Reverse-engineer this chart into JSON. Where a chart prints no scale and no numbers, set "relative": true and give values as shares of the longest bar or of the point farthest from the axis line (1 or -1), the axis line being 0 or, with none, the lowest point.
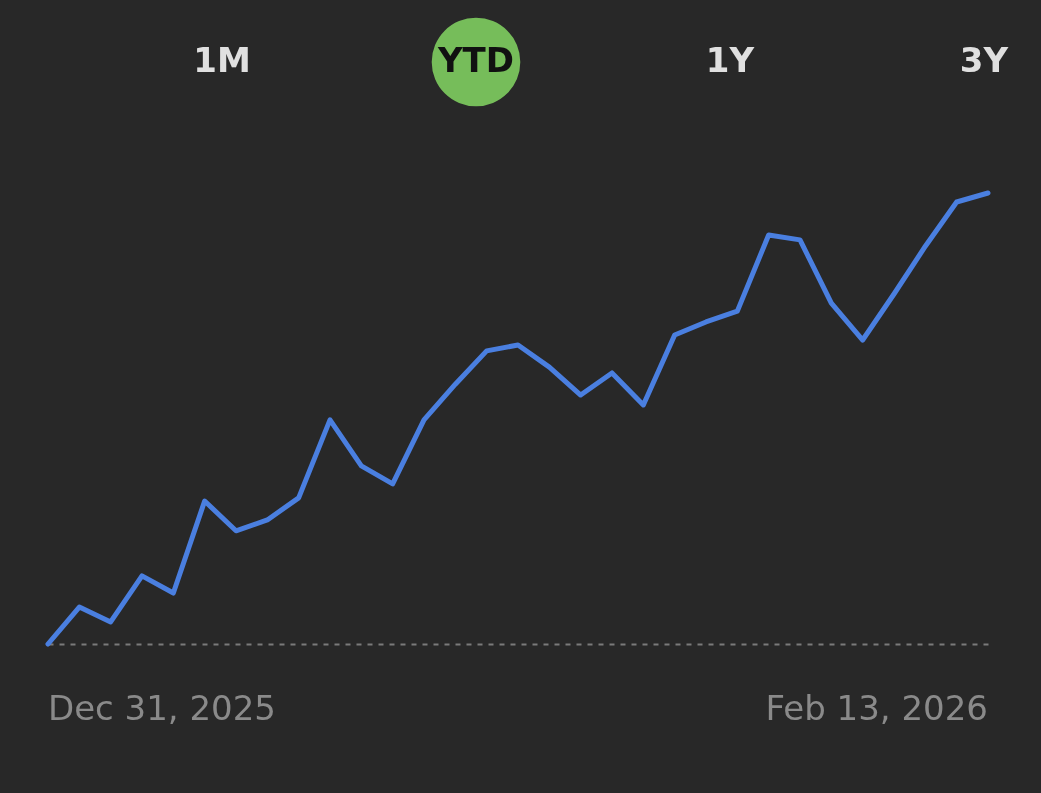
{
  "chart_data": {
    "type": "line",
    "relative": true,
    "categories": [
      null,
      null,
      null,
      null,
      null,
      null,
      null,
      null,
      null,
      null,
      null,
      null,
      null,
      null,
      null,
      null,
      null,
      null,
      null,
      null,
      null,
      null,
      null,
      null,
      null,
      null,
      null,
      null,
      null,
      null,
      null
    ],
    "series": [
      {
        "color": "#4a7fe0",
        "values": [
          0,
          0.082,
          0.049,
          0.151,
          0.113,
          0.317,
          0.251,
          0.275,
          0.324,
          0.497,
          0.395,
          0.355,
          0.497,
          0.576,
          0.65,
          0.663,
          0.614,
          0.552,
          0.601,
          0.53,
          0.685,
          0.714,
          0.738,
          0.907,
          0.896,
          0.756,
          0.674,
          0.776,
          0.882,
          0.98,
          1.0
        ]
      }
    ],
    "annotations": [
      "1M",
      "YTD",
      "1Y",
      "3Y",
      "Dec 31, 2025",
      "Feb 13, 2026"
    ],
    "grid": false,
    "marker": "none",
    "line_style": "solid"
  }
}
